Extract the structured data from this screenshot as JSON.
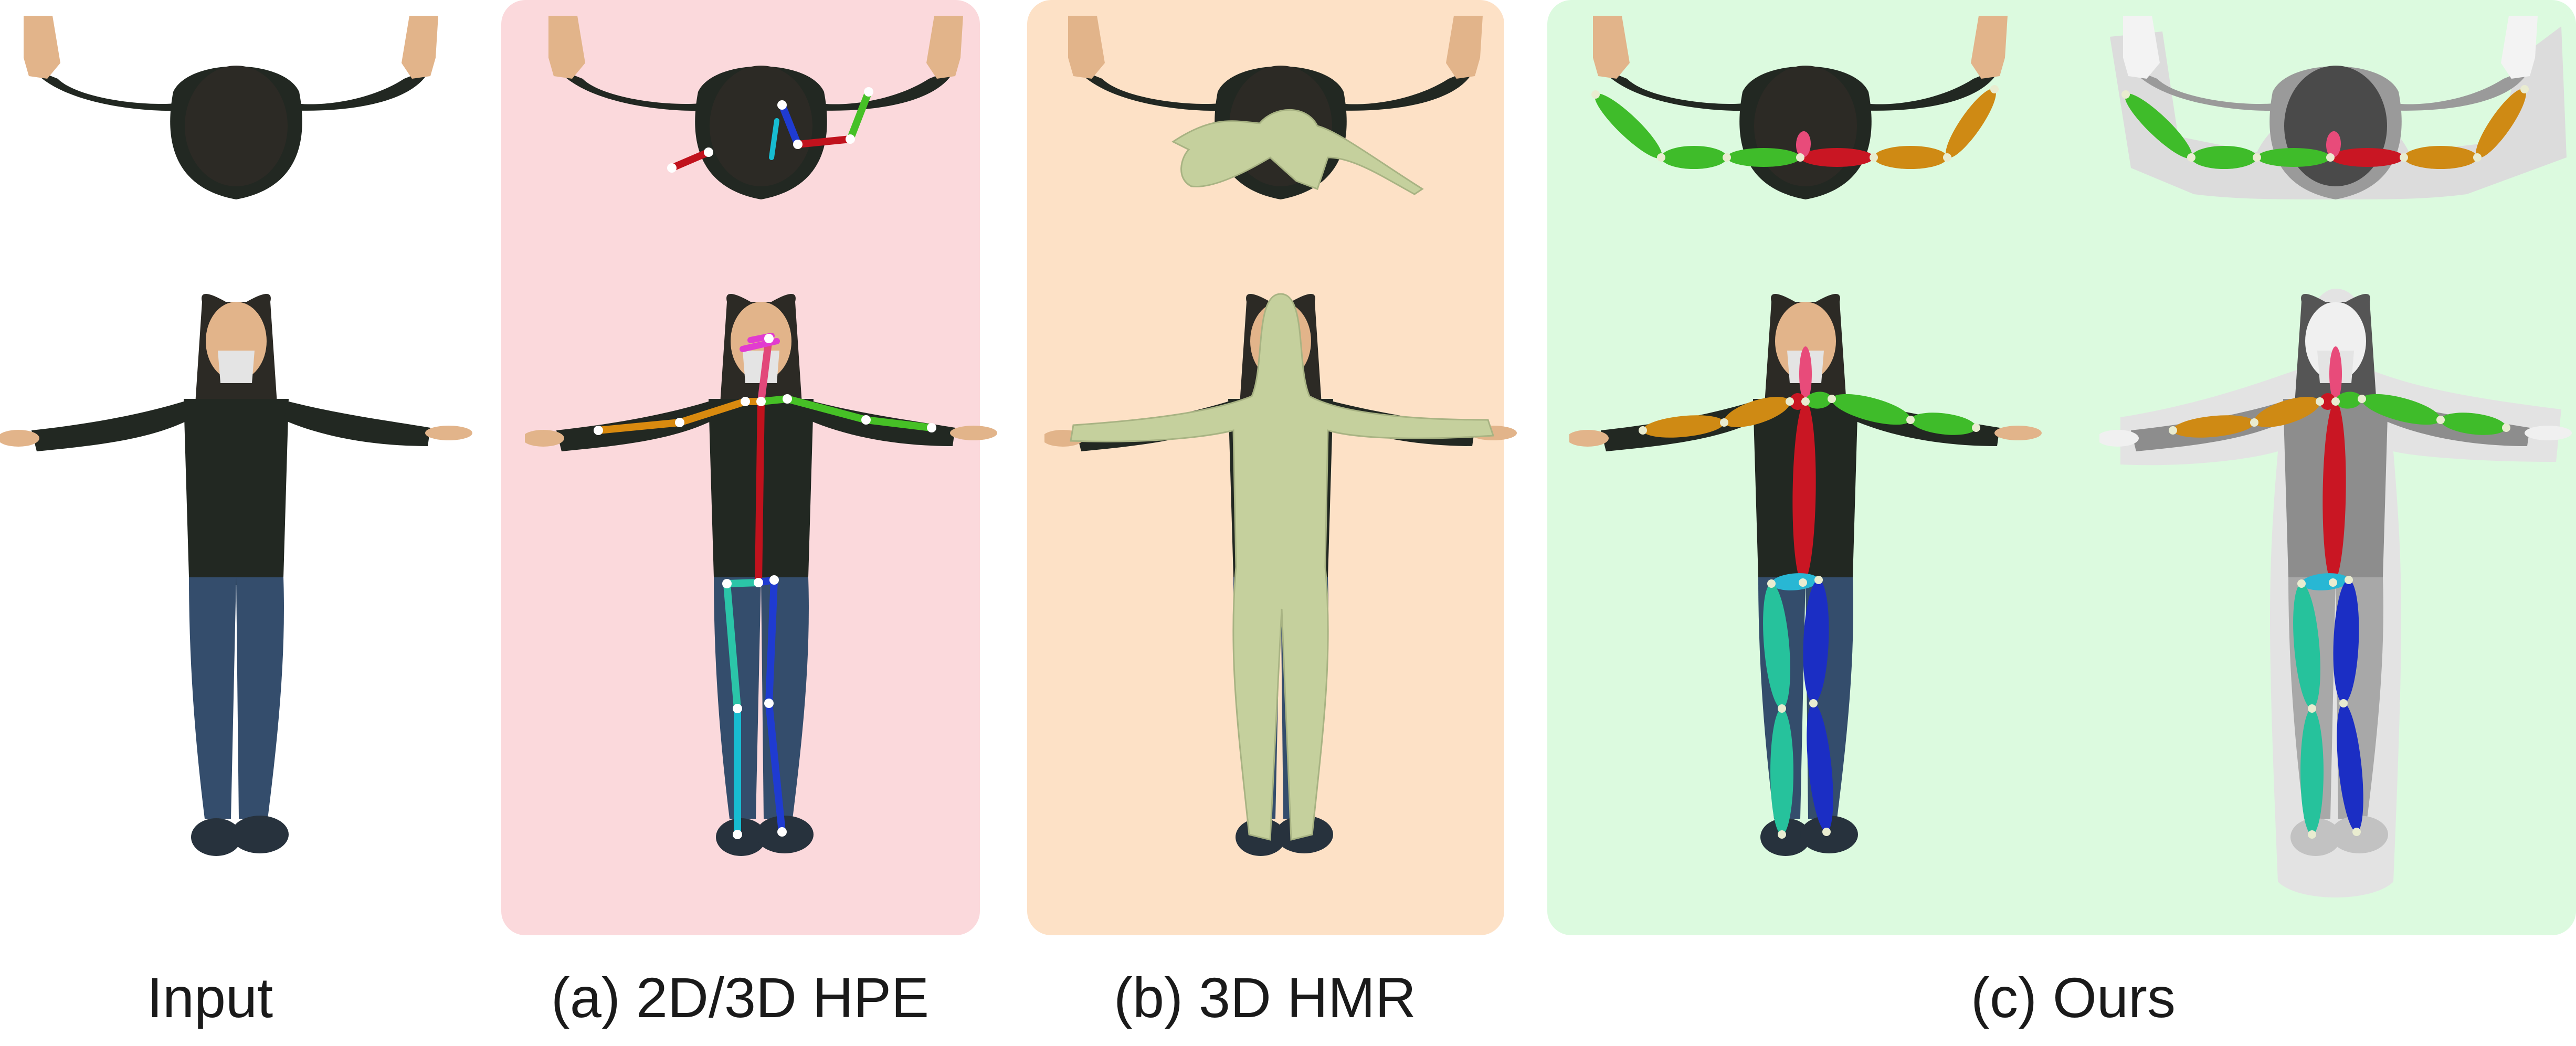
{
  "colors": {
    "panel_hpe": "#fbd9dc",
    "panel_hmr": "#fde1c6",
    "panel_ours": "#dcfadf",
    "skin": "#e2b48a",
    "jacket": "#222822",
    "hair": "#2c2a25",
    "jeans": "#344d6c",
    "shoe": "#27323d",
    "mesh": "#c5d09d",
    "mask": "#e6e6e6"
  },
  "captions": {
    "input": "Input",
    "hpe": "(a) 2D/3D HPE",
    "hmr": "(b) 3D HMR",
    "ours": "(c) Ours"
  },
  "figures": [
    {
      "key": "input",
      "overlay": "none"
    },
    {
      "key": "hpe",
      "overlay": "skeleton"
    },
    {
      "key": "hmr",
      "overlay": "mesh"
    },
    {
      "key": "ours-rgb",
      "overlay": "ellipsoid-skeleton"
    },
    {
      "key": "ours-depth",
      "overlay": "ellipsoid-skeleton-depth"
    }
  ]
}
